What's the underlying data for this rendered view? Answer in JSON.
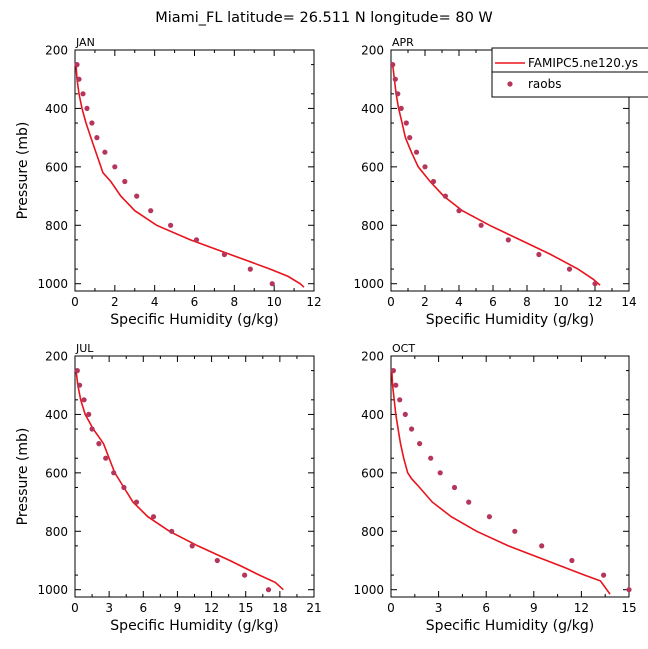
{
  "chart_data": {
    "title": "Miami_FL  latitude= 26.511 N longitude= 80 W",
    "legend": {
      "placement": "top-right",
      "entries": [
        {
          "name": "FAMIPC5.ne120.ys",
          "kind": "line",
          "color": "#e8141c"
        },
        {
          "name": "raobs",
          "kind": "marker",
          "color": "#b5365a"
        }
      ]
    },
    "panels": [
      {
        "type": "line",
        "label": "JAN",
        "xlabel": "Specific Humidity (g/kg)",
        "ylabel": "Pressure (mb)",
        "xlim": [
          0,
          12
        ],
        "ylim": [
          200,
          1025
        ],
        "xticks": [
          0,
          2,
          4,
          6,
          8,
          10,
          12
        ],
        "yticks": [
          200,
          400,
          600,
          800,
          1000
        ],
        "model": {
          "name": "FAMIPC5.ne120.ys",
          "pressure": [
            250,
            300,
            350,
            400,
            450,
            500,
            550,
            600,
            620,
            650,
            700,
            750,
            800,
            850,
            900,
            950,
            975,
            1000,
            1012
          ],
          "values": [
            0.05,
            0.1,
            0.2,
            0.35,
            0.55,
            0.8,
            1.05,
            1.3,
            1.4,
            1.8,
            2.3,
            3.0,
            4.1,
            5.8,
            7.8,
            9.8,
            10.7,
            11.3,
            11.5
          ]
        },
        "raobs": {
          "name": "raobs",
          "pressure": [
            250,
            300,
            350,
            400,
            450,
            500,
            550,
            600,
            650,
            700,
            750,
            800,
            850,
            900,
            950,
            1000
          ],
          "values": [
            0.1,
            0.2,
            0.4,
            0.6,
            0.85,
            1.1,
            1.5,
            2.0,
            2.5,
            3.1,
            3.8,
            4.8,
            6.1,
            7.5,
            8.8,
            9.9
          ]
        }
      },
      {
        "type": "line",
        "label": "APR",
        "xlabel": "Specific Humidity (g/kg)",
        "ylabel": "Pressure (mb)",
        "xlim": [
          0,
          14
        ],
        "ylim": [
          200,
          1025
        ],
        "xticks": [
          0,
          2,
          4,
          6,
          8,
          10,
          12,
          14
        ],
        "yticks": [
          200,
          400,
          600,
          800,
          1000
        ],
        "model": {
          "name": "FAMIPC5.ne120.ys",
          "pressure": [
            250,
            300,
            350,
            400,
            450,
            500,
            550,
            600,
            650,
            700,
            750,
            800,
            850,
            900,
            950,
            985,
            1005
          ],
          "values": [
            0.1,
            0.2,
            0.3,
            0.45,
            0.65,
            0.85,
            1.2,
            1.6,
            2.3,
            3.1,
            4.2,
            5.8,
            7.6,
            9.4,
            11.0,
            11.9,
            12.3
          ]
        },
        "raobs": {
          "name": "raobs",
          "pressure": [
            250,
            300,
            350,
            400,
            450,
            500,
            550,
            600,
            650,
            700,
            750,
            800,
            850,
            900,
            950,
            1000
          ],
          "values": [
            0.1,
            0.25,
            0.4,
            0.6,
            0.9,
            1.1,
            1.5,
            2.0,
            2.5,
            3.2,
            4.0,
            5.3,
            6.9,
            8.7,
            10.5,
            12.0
          ]
        }
      },
      {
        "type": "line",
        "label": "JUL",
        "xlabel": "Specific Humidity (g/kg)",
        "ylabel": "Pressure (mb)",
        "xlim": [
          0,
          21
        ],
        "ylim": [
          200,
          1025
        ],
        "xticks": [
          0,
          3,
          6,
          9,
          12,
          15,
          18,
          21
        ],
        "yticks": [
          200,
          400,
          600,
          800,
          1000
        ],
        "model": {
          "name": "FAMIPC5.ne120.ys",
          "pressure": [
            250,
            300,
            350,
            400,
            450,
            500,
            550,
            600,
            650,
            700,
            750,
            800,
            850,
            900,
            950,
            975,
            1000
          ],
          "values": [
            0.1,
            0.25,
            0.5,
            0.9,
            1.6,
            2.5,
            3.0,
            3.5,
            4.3,
            5.1,
            6.4,
            8.3,
            10.8,
            13.6,
            16.2,
            17.6,
            18.3
          ]
        },
        "raobs": {
          "name": "raobs",
          "pressure": [
            250,
            300,
            350,
            400,
            450,
            500,
            550,
            600,
            650,
            700,
            750,
            800,
            850,
            900,
            950,
            1000
          ],
          "values": [
            0.2,
            0.4,
            0.8,
            1.2,
            1.5,
            2.1,
            2.7,
            3.4,
            4.3,
            5.4,
            6.9,
            8.5,
            10.3,
            12.5,
            14.9,
            17.0
          ]
        }
      },
      {
        "type": "line",
        "label": "OCT",
        "xlabel": "Specific Humidity (g/kg)",
        "ylabel": "Pressure (mb)",
        "xlim": [
          0,
          15
        ],
        "ylim": [
          200,
          1025
        ],
        "xticks": [
          0,
          3,
          6,
          9,
          12,
          15
        ],
        "yticks": [
          200,
          400,
          600,
          800,
          1000
        ],
        "model": {
          "name": "FAMIPC5.ne120.ys",
          "pressure": [
            250,
            300,
            350,
            400,
            450,
            500,
            550,
            600,
            620,
            650,
            700,
            750,
            800,
            850,
            900,
            950,
            970,
            1000,
            1015
          ],
          "values": [
            0.05,
            0.1,
            0.2,
            0.3,
            0.45,
            0.6,
            0.8,
            1.05,
            1.3,
            1.8,
            2.6,
            3.8,
            5.4,
            7.4,
            9.8,
            12.2,
            13.2,
            13.6,
            13.8
          ]
        },
        "raobs": {
          "name": "raobs",
          "pressure": [
            250,
            300,
            350,
            400,
            450,
            500,
            550,
            600,
            650,
            700,
            750,
            800,
            850,
            900,
            950,
            1000
          ],
          "values": [
            0.15,
            0.3,
            0.55,
            0.9,
            1.3,
            1.8,
            2.5,
            3.1,
            4.0,
            4.9,
            6.2,
            7.8,
            9.5,
            11.4,
            13.4,
            15.0
          ]
        }
      }
    ]
  }
}
